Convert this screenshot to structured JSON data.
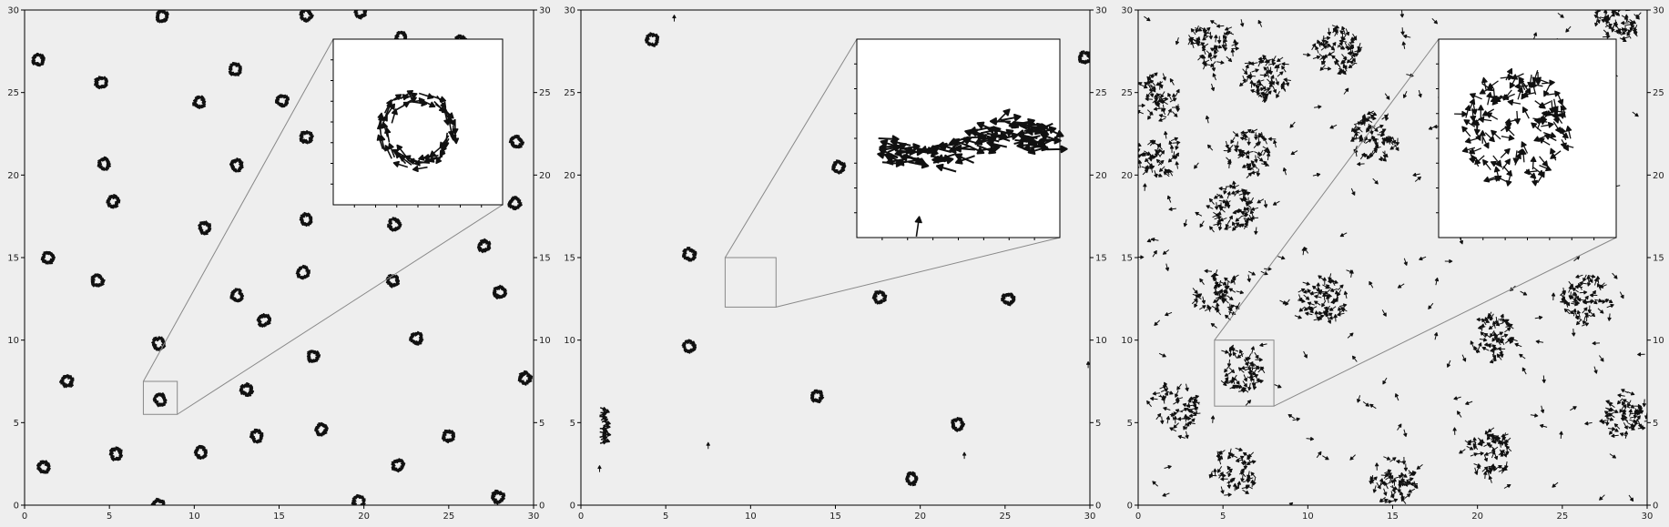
{
  "figure": {
    "background": "#eeeeee",
    "panel_color": "#eeeeee",
    "inset_color": "#ffffff",
    "mark_color": "#111111",
    "connector_color": "#888888"
  },
  "chart_data": [
    {
      "type": "scatter",
      "title": "",
      "xlabel": "",
      "ylabel": "",
      "xlim": [
        0,
        30
      ],
      "ylim": [
        0,
        30
      ],
      "xticks": [
        "0",
        "5",
        "10",
        "15",
        "20",
        "25",
        "30"
      ],
      "yticks": [
        "0",
        "5",
        "10",
        "15",
        "20",
        "25",
        "30"
      ],
      "right_yticks": [
        "0",
        "5",
        "10",
        "15",
        "20",
        "25",
        "30"
      ],
      "grid": false,
      "marker": "arrow",
      "pattern": "ring",
      "series": [
        {
          "x": [
            0.8,
            8.1,
            16.6,
            19.8,
            22.2,
            25.7,
            4.5,
            10.3,
            12.4,
            15.2,
            16.6,
            4.7,
            12.5,
            5.2,
            10.6,
            16.6,
            21.8,
            28.9,
            1.4,
            4.3,
            16.4,
            21.7,
            27.1,
            12.5,
            14.1,
            28.0,
            7.9,
            23.1,
            17.0,
            2.5,
            13.1,
            8.0,
            17.5,
            13.7,
            25.0,
            5.4,
            10.4,
            22.0,
            1.1,
            27.9,
            29.5,
            29.0,
            7.9,
            19.7
          ],
          "y": [
            27.0,
            29.6,
            29.7,
            29.9,
            28.3,
            28.1,
            25.6,
            24.4,
            26.4,
            24.5,
            22.3,
            20.7,
            20.6,
            18.4,
            16.8,
            17.3,
            17.0,
            18.3,
            15.0,
            13.6,
            14.1,
            13.6,
            15.7,
            12.7,
            11.2,
            12.9,
            9.8,
            10.1,
            9.0,
            7.5,
            7.0,
            6.4,
            4.6,
            4.2,
            4.2,
            3.1,
            3.2,
            2.4,
            2.3,
            0.5,
            7.7,
            22.0,
            0.0,
            0.2
          ]
        }
      ],
      "zoom_box": {
        "x": [
          7.0,
          9.0
        ],
        "y": [
          5.5,
          7.5
        ]
      },
      "inset": {
        "xlim": [
          7.0,
          9.0
        ],
        "ylim": [
          5.5,
          7.5
        ],
        "pattern": "ring",
        "center": [
          8.0,
          6.4
        ],
        "radius": 0.25,
        "arrow_count": 55
      }
    },
    {
      "type": "scatter",
      "title": "",
      "xlabel": "",
      "ylabel": "",
      "xlim": [
        0,
        30
      ],
      "ylim": [
        0,
        30
      ],
      "xticks": [
        "0",
        "5",
        "10",
        "15",
        "20",
        "25",
        "30"
      ],
      "yticks": [
        "0",
        "5",
        "10",
        "15",
        "20",
        "25",
        "30"
      ],
      "right_yticks": [
        "0",
        "5",
        "10",
        "15",
        "20",
        "25",
        "30"
      ],
      "grid": false,
      "marker": "arrow",
      "pattern": "ring",
      "series": [
        {
          "x": [
            4.2,
            15.2,
            29.7,
            6.4,
            17.6,
            25.2,
            6.4,
            13.9,
            22.2,
            19.5
          ],
          "y": [
            28.2,
            20.5,
            27.1,
            15.2,
            12.6,
            12.5,
            9.6,
            6.6,
            4.9,
            1.6
          ]
        }
      ],
      "extra_clusters": [
        {
          "shape": "column",
          "x": 1.4,
          "y_from": 3.8,
          "y_to": 5.9
        }
      ],
      "stray_arrows": [
        {
          "x": 5.5,
          "y": 29.5
        },
        {
          "x": 7.5,
          "y": 3.6
        },
        {
          "x": 22.6,
          "y": 3.0
        },
        {
          "x": 1.1,
          "y": 2.2
        },
        {
          "x": 29.9,
          "y": 8.5
        }
      ],
      "zoom_box": {
        "x": [
          8.5,
          11.5
        ],
        "y": [
          12.0,
          15.0
        ]
      },
      "inset": {
        "xlim": [
          8.5,
          11.5
        ],
        "ylim": [
          12.0,
          15.0
        ],
        "pattern": "band",
        "center": [
          10.0,
          13.4
        ],
        "arrow_count": 90
      }
    },
    {
      "type": "scatter",
      "title": "",
      "xlabel": "",
      "ylabel": "",
      "xlim": [
        0,
        30
      ],
      "ylim": [
        0,
        30
      ],
      "xticks": [
        "0",
        "5",
        "10",
        "15",
        "20",
        "25",
        "30"
      ],
      "yticks": [
        "0",
        "5",
        "10",
        "15",
        "20",
        "25",
        "30"
      ],
      "right_yticks": [
        "0",
        "5",
        "10",
        "15",
        "20",
        "25",
        "30"
      ],
      "grid": false,
      "marker": "arrow",
      "pattern": "cluster",
      "series": [
        {
          "x": [
            4.4,
            11.7,
            1.1,
            14.0,
            1.1,
            6.5,
            5.6,
            4.7,
            10.9,
            26.4,
            20.8,
            6.0,
            28.7,
            20.7,
            5.6,
            15.0,
            2.2,
            7.5,
            28.3
          ],
          "y": [
            27.9,
            27.6,
            24.6,
            22.3,
            21.2,
            21.4,
            18.0,
            12.6,
            12.5,
            12.6,
            10.1,
            8.2,
            5.5,
            3.2,
            2.0,
            1.5,
            6.0,
            26.0,
            29.6
          ]
        }
      ],
      "zoom_box": {
        "x": [
          4.5,
          8.0
        ],
        "y": [
          6.0,
          10.0
        ]
      },
      "inset": {
        "xlim": [
          4.5,
          8.0
        ],
        "ylim": [
          6.0,
          10.0
        ],
        "pattern": "cluster",
        "center": [
          6.0,
          8.2
        ],
        "radius": 1.0,
        "arrow_count": 120
      }
    }
  ]
}
